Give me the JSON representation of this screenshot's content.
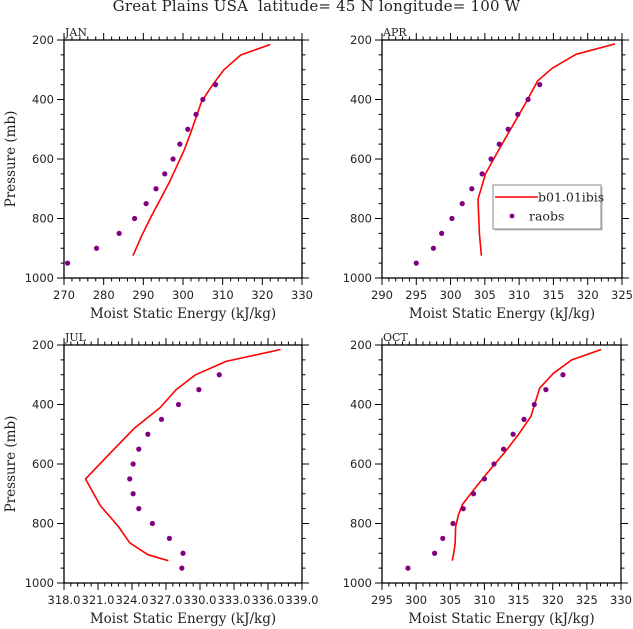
{
  "title": "Great Plains USA  latitude= 45 N longitude= 100 W",
  "colors": {
    "model_line": "#ff0000",
    "obs_point": "#800080",
    "axis": "#000000",
    "legend_border": "#888888"
  },
  "legend": {
    "panel": "APR",
    "placement": "lower-right",
    "entries": [
      {
        "label": "b01.01ibis",
        "kind": "line"
      },
      {
        "label": "raobs",
        "kind": "marker"
      }
    ]
  },
  "chart_data": [
    {
      "type": "line",
      "title": "JAN",
      "xlabel": "Moist Static Energy (kJ/kg)",
      "ylabel": "Pressure (mb)",
      "xlim": [
        270,
        330
      ],
      "ylim": [
        1000,
        200
      ],
      "y_inverted": true,
      "xticks": [
        270,
        280,
        290,
        300,
        310,
        320,
        330
      ],
      "xtick_labels": [
        "270",
        "280",
        "290",
        "300",
        "310",
        "320",
        "330"
      ],
      "x_minor_step": 2,
      "yticks": [
        200,
        400,
        600,
        800,
        1000
      ],
      "ytick_labels": [
        "200",
        "400",
        "600",
        "800",
        "1000"
      ],
      "y_minor_step": 50,
      "show_ylabel": true,
      "grid": false,
      "series": [
        {
          "name": "b01.01ibis",
          "style": "line",
          "x": [
            287.4,
            289.5,
            292.1,
            294.5,
            296.5,
            298.6,
            300.3,
            302.0,
            303.3,
            304.6,
            306.0,
            307.5,
            310.3,
            314.6,
            322.0
          ],
          "y": [
            925,
            860,
            790,
            730,
            680,
            620,
            570,
            510,
            460,
            410,
            380,
            350,
            300,
            250,
            215
          ]
        },
        {
          "name": "raobs",
          "style": "marker",
          "x": [
            270.9,
            278.2,
            283.9,
            287.8,
            290.7,
            293.2,
            295.4,
            297.5,
            299.2,
            301.2,
            303.3,
            305.0,
            308.2
          ],
          "y": [
            950,
            900,
            850,
            800,
            750,
            700,
            650,
            600,
            550,
            500,
            450,
            400,
            350
          ]
        }
      ]
    },
    {
      "type": "line",
      "title": "APR",
      "xlabel": "Moist Static Energy (kJ/kg)",
      "ylabel": "",
      "xlim": [
        290,
        325
      ],
      "ylim": [
        1000,
        200
      ],
      "y_inverted": true,
      "xticks": [
        290,
        295,
        300,
        305,
        310,
        315,
        320,
        325
      ],
      "xtick_labels": [
        "290",
        "295",
        "300",
        "305",
        "310",
        "315",
        "320",
        "325"
      ],
      "x_minor_step": 1,
      "yticks": [
        200,
        400,
        600,
        800,
        1000
      ],
      "ytick_labels": [
        "200",
        "400",
        "600",
        "800",
        "1000"
      ],
      "y_minor_step": 50,
      "show_ylabel": false,
      "grid": false,
      "series": [
        {
          "name": "b01.01ibis",
          "style": "line",
          "x": [
            304.5,
            304.2,
            304.0,
            305.1,
            307.0,
            309.0,
            311.0,
            312.7,
            314.8,
            318.3,
            324.0
          ],
          "y": [
            925,
            850,
            735,
            650,
            570,
            490,
            410,
            337,
            295,
            248,
            213
          ]
        },
        {
          "name": "raobs",
          "style": "marker",
          "x": [
            295.0,
            297.5,
            298.7,
            300.2,
            301.7,
            303.1,
            304.6,
            305.9,
            307.1,
            308.4,
            309.8,
            311.3,
            313.0
          ],
          "y": [
            950,
            900,
            850,
            800,
            750,
            700,
            650,
            600,
            550,
            500,
            450,
            400,
            350
          ]
        }
      ]
    },
    {
      "type": "line",
      "title": "JUL",
      "xlabel": "Moist Static Energy (kJ/kg)",
      "ylabel": "Pressure (mb)",
      "xlim": [
        318,
        339
      ],
      "ylim": [
        1000,
        200
      ],
      "y_inverted": true,
      "xticks": [
        318,
        321,
        324,
        327,
        330,
        333,
        336,
        339
      ],
      "xtick_labels": [
        "318.0",
        "321.0",
        "324.0",
        "327.0",
        "330.0",
        "333.0",
        "336.0",
        "339.0"
      ],
      "x_minor_step": 0.6,
      "yticks": [
        200,
        400,
        600,
        800,
        1000
      ],
      "ytick_labels": [
        "200",
        "400",
        "600",
        "800",
        "1000"
      ],
      "y_minor_step": 50,
      "show_ylabel": true,
      "grid": false,
      "series": [
        {
          "name": "b01.01ibis",
          "style": "line",
          "x": [
            327.2,
            325.4,
            323.8,
            322.8,
            321.2,
            319.9,
            322.3,
            324.2,
            326.5,
            327.9,
            329.6,
            332.3,
            337.1
          ],
          "y": [
            925,
            905,
            865,
            810,
            740,
            650,
            555,
            480,
            410,
            350,
            300,
            255,
            215
          ]
        },
        {
          "name": "raobs",
          "style": "marker",
          "x": [
            328.4,
            328.5,
            327.3,
            325.8,
            324.6,
            324.1,
            323.8,
            324.1,
            324.6,
            325.4,
            326.6,
            328.1,
            329.9,
            331.7
          ],
          "y": [
            950,
            900,
            850,
            800,
            750,
            700,
            650,
            600,
            550,
            500,
            450,
            400,
            350,
            300
          ]
        }
      ]
    },
    {
      "type": "line",
      "title": "OCT",
      "xlabel": "Moist Static Energy (kJ/kg)",
      "ylabel": "",
      "xlim": [
        295,
        330
      ],
      "ylim": [
        1000,
        200
      ],
      "y_inverted": true,
      "xticks": [
        295,
        300,
        305,
        310,
        315,
        320,
        325,
        330
      ],
      "xtick_labels": [
        "295",
        "300",
        "305",
        "310",
        "315",
        "320",
        "325",
        "330"
      ],
      "x_minor_step": 1,
      "yticks": [
        200,
        400,
        600,
        800,
        1000
      ],
      "ytick_labels": [
        "200",
        "400",
        "600",
        "800",
        "1000"
      ],
      "y_minor_step": 50,
      "show_ylabel": false,
      "grid": false,
      "series": [
        {
          "name": "b01.01ibis",
          "style": "line",
          "x": [
            305.3,
            305.5,
            305.7,
            305.8,
            306.2,
            306.8,
            308.5,
            310.8,
            313.0,
            315.0,
            316.8,
            318.1,
            320.1,
            322.8,
            327.1
          ],
          "y": [
            925,
            900,
            870,
            810,
            770,
            735,
            685,
            620,
            560,
            500,
            440,
            345,
            295,
            250,
            215
          ]
        },
        {
          "name": "raobs",
          "style": "marker",
          "x": [
            298.8,
            302.7,
            303.9,
            305.4,
            306.9,
            308.4,
            310.0,
            311.4,
            312.8,
            314.2,
            315.8,
            317.3,
            319.0,
            321.5
          ],
          "y": [
            950,
            900,
            850,
            800,
            750,
            700,
            650,
            600,
            550,
            500,
            450,
            400,
            350,
            300
          ]
        }
      ]
    }
  ]
}
